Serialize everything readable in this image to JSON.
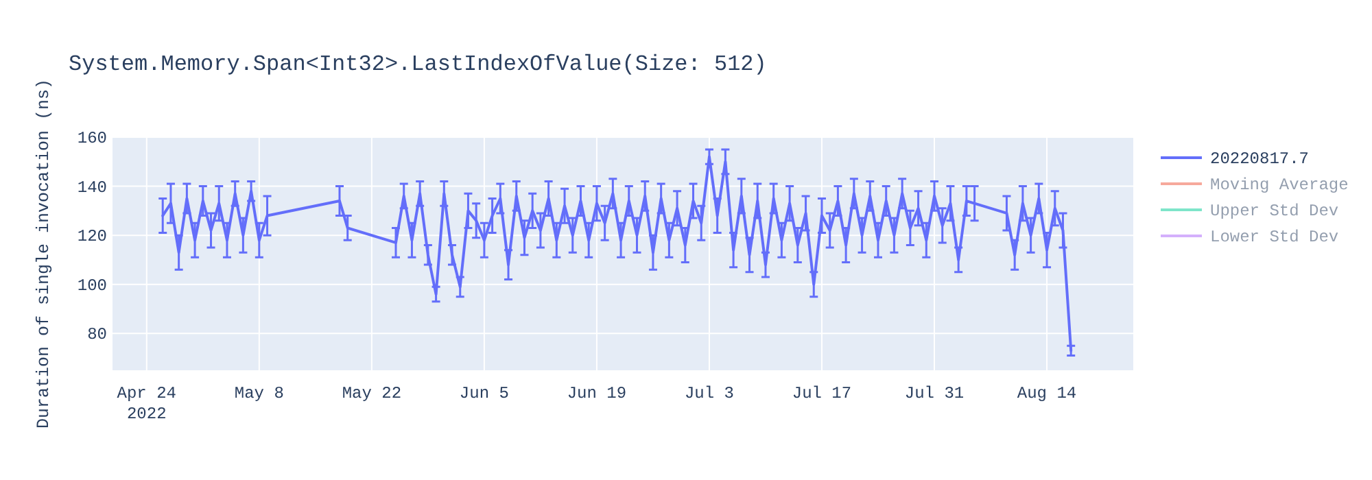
{
  "chart_data": {
    "type": "line",
    "title": "System.Memory.Span<Int32>.LastIndexOfValue(Size: 512)",
    "ylabel": "Duration of single invocation (ns)",
    "xlim": [
      "2022-04-19T18:00",
      "2022-08-24T18:00"
    ],
    "ylim": [
      65,
      160
    ],
    "xticks": [
      {
        "value": "2022-04-24",
        "label": "Apr 24\n2022"
      },
      {
        "value": "2022-05-08",
        "label": "May 8"
      },
      {
        "value": "2022-05-22",
        "label": "May 22"
      },
      {
        "value": "2022-06-05",
        "label": "Jun 5"
      },
      {
        "value": "2022-06-19",
        "label": "Jun 19"
      },
      {
        "value": "2022-07-03",
        "label": "Jul 3"
      },
      {
        "value": "2022-07-17",
        "label": "Jul 17"
      },
      {
        "value": "2022-07-31",
        "label": "Jul 31"
      },
      {
        "value": "2022-08-14",
        "label": "Aug 14"
      }
    ],
    "yticks": [
      80,
      100,
      120,
      140,
      160
    ],
    "grid": true,
    "legend": "top right",
    "line_style": "solid",
    "series": [
      {
        "name": "20220817.7",
        "color": "#636efa",
        "x": [
          "2022-04-26",
          "2022-04-27",
          "2022-04-28",
          "2022-04-29",
          "2022-04-30",
          "2022-05-01",
          "2022-05-02",
          "2022-05-03",
          "2022-05-04",
          "2022-05-05",
          "2022-05-06",
          "2022-05-07",
          "2022-05-08",
          "2022-05-09",
          "2022-05-18",
          "2022-05-19",
          "2022-05-25",
          "2022-05-26",
          "2022-05-27",
          "2022-05-28",
          "2022-05-29",
          "2022-05-30",
          "2022-05-31",
          "2022-06-01",
          "2022-06-02",
          "2022-06-03",
          "2022-06-04",
          "2022-06-05",
          "2022-06-06",
          "2022-06-07",
          "2022-06-08",
          "2022-06-09",
          "2022-06-10",
          "2022-06-11",
          "2022-06-12",
          "2022-06-13",
          "2022-06-14",
          "2022-06-15",
          "2022-06-16",
          "2022-06-17",
          "2022-06-18",
          "2022-06-19",
          "2022-06-20",
          "2022-06-21",
          "2022-06-22",
          "2022-06-23",
          "2022-06-24",
          "2022-06-25",
          "2022-06-26",
          "2022-06-27",
          "2022-06-28",
          "2022-06-29",
          "2022-06-30",
          "2022-07-01",
          "2022-07-02",
          "2022-07-03",
          "2022-07-04",
          "2022-07-05",
          "2022-07-06",
          "2022-07-07",
          "2022-07-08",
          "2022-07-09",
          "2022-07-10",
          "2022-07-11",
          "2022-07-12",
          "2022-07-13",
          "2022-07-14",
          "2022-07-15",
          "2022-07-16",
          "2022-07-17",
          "2022-07-18",
          "2022-07-19",
          "2022-07-20",
          "2022-07-21",
          "2022-07-22",
          "2022-07-23",
          "2022-07-24",
          "2022-07-25",
          "2022-07-26",
          "2022-07-27",
          "2022-07-28",
          "2022-07-29",
          "2022-07-30",
          "2022-07-31",
          "2022-08-01",
          "2022-08-02",
          "2022-08-03",
          "2022-08-04",
          "2022-08-05",
          "2022-08-09",
          "2022-08-10",
          "2022-08-11",
          "2022-08-12",
          "2022-08-13",
          "2022-08-14",
          "2022-08-15",
          "2022-08-16",
          "2022-08-17"
        ],
        "values": [
          128,
          133,
          113,
          135,
          118,
          134,
          122,
          133,
          118,
          137,
          120,
          138,
          118,
          128,
          134,
          123,
          117,
          136,
          118,
          137,
          112,
          96,
          137,
          112,
          99,
          130,
          126,
          118,
          128,
          135,
          108,
          136,
          119,
          130,
          122,
          135,
          118,
          132,
          120,
          134,
          118,
          133,
          125,
          137,
          118,
          134,
          120,
          136,
          113,
          135,
          118,
          131,
          116,
          134,
          125,
          152,
          128,
          150,
          114,
          136,
          112,
          134,
          108,
          135,
          118,
          133,
          116,
          129,
          100,
          128,
          122,
          134,
          116,
          137,
          120,
          136,
          118,
          134,
          120,
          137,
          123,
          131,
          118,
          136,
          124,
          133,
          110,
          134,
          133,
          129,
          112,
          133,
          120,
          135,
          114,
          131,
          122,
          73
        ],
        "errors": [
          7,
          8,
          7,
          6,
          7,
          6,
          7,
          7,
          7,
          5,
          7,
          4,
          7,
          8,
          6,
          5,
          6,
          5,
          7,
          5,
          4,
          3,
          5,
          4,
          4,
          7,
          7,
          7,
          7,
          6,
          6,
          6,
          7,
          7,
          7,
          7,
          7,
          7,
          7,
          6,
          7,
          7,
          7,
          6,
          7,
          6,
          7,
          6,
          7,
          6,
          7,
          7,
          7,
          7,
          7,
          3,
          7,
          5,
          7,
          7,
          7,
          7,
          5,
          6,
          7,
          7,
          7,
          7,
          5,
          7,
          7,
          6,
          7,
          6,
          7,
          6,
          7,
          6,
          7,
          6,
          7,
          7,
          7,
          6,
          7,
          7,
          5,
          6,
          7,
          7,
          6,
          7,
          7,
          6,
          7,
          7,
          7,
          2
        ]
      },
      {
        "name": "Moving Average",
        "color": "#ef553b"
      },
      {
        "name": "Upper Std Dev",
        "color": "#00cc96"
      },
      {
        "name": "Lower Std Dev",
        "color": "#ab63fa"
      }
    ]
  }
}
